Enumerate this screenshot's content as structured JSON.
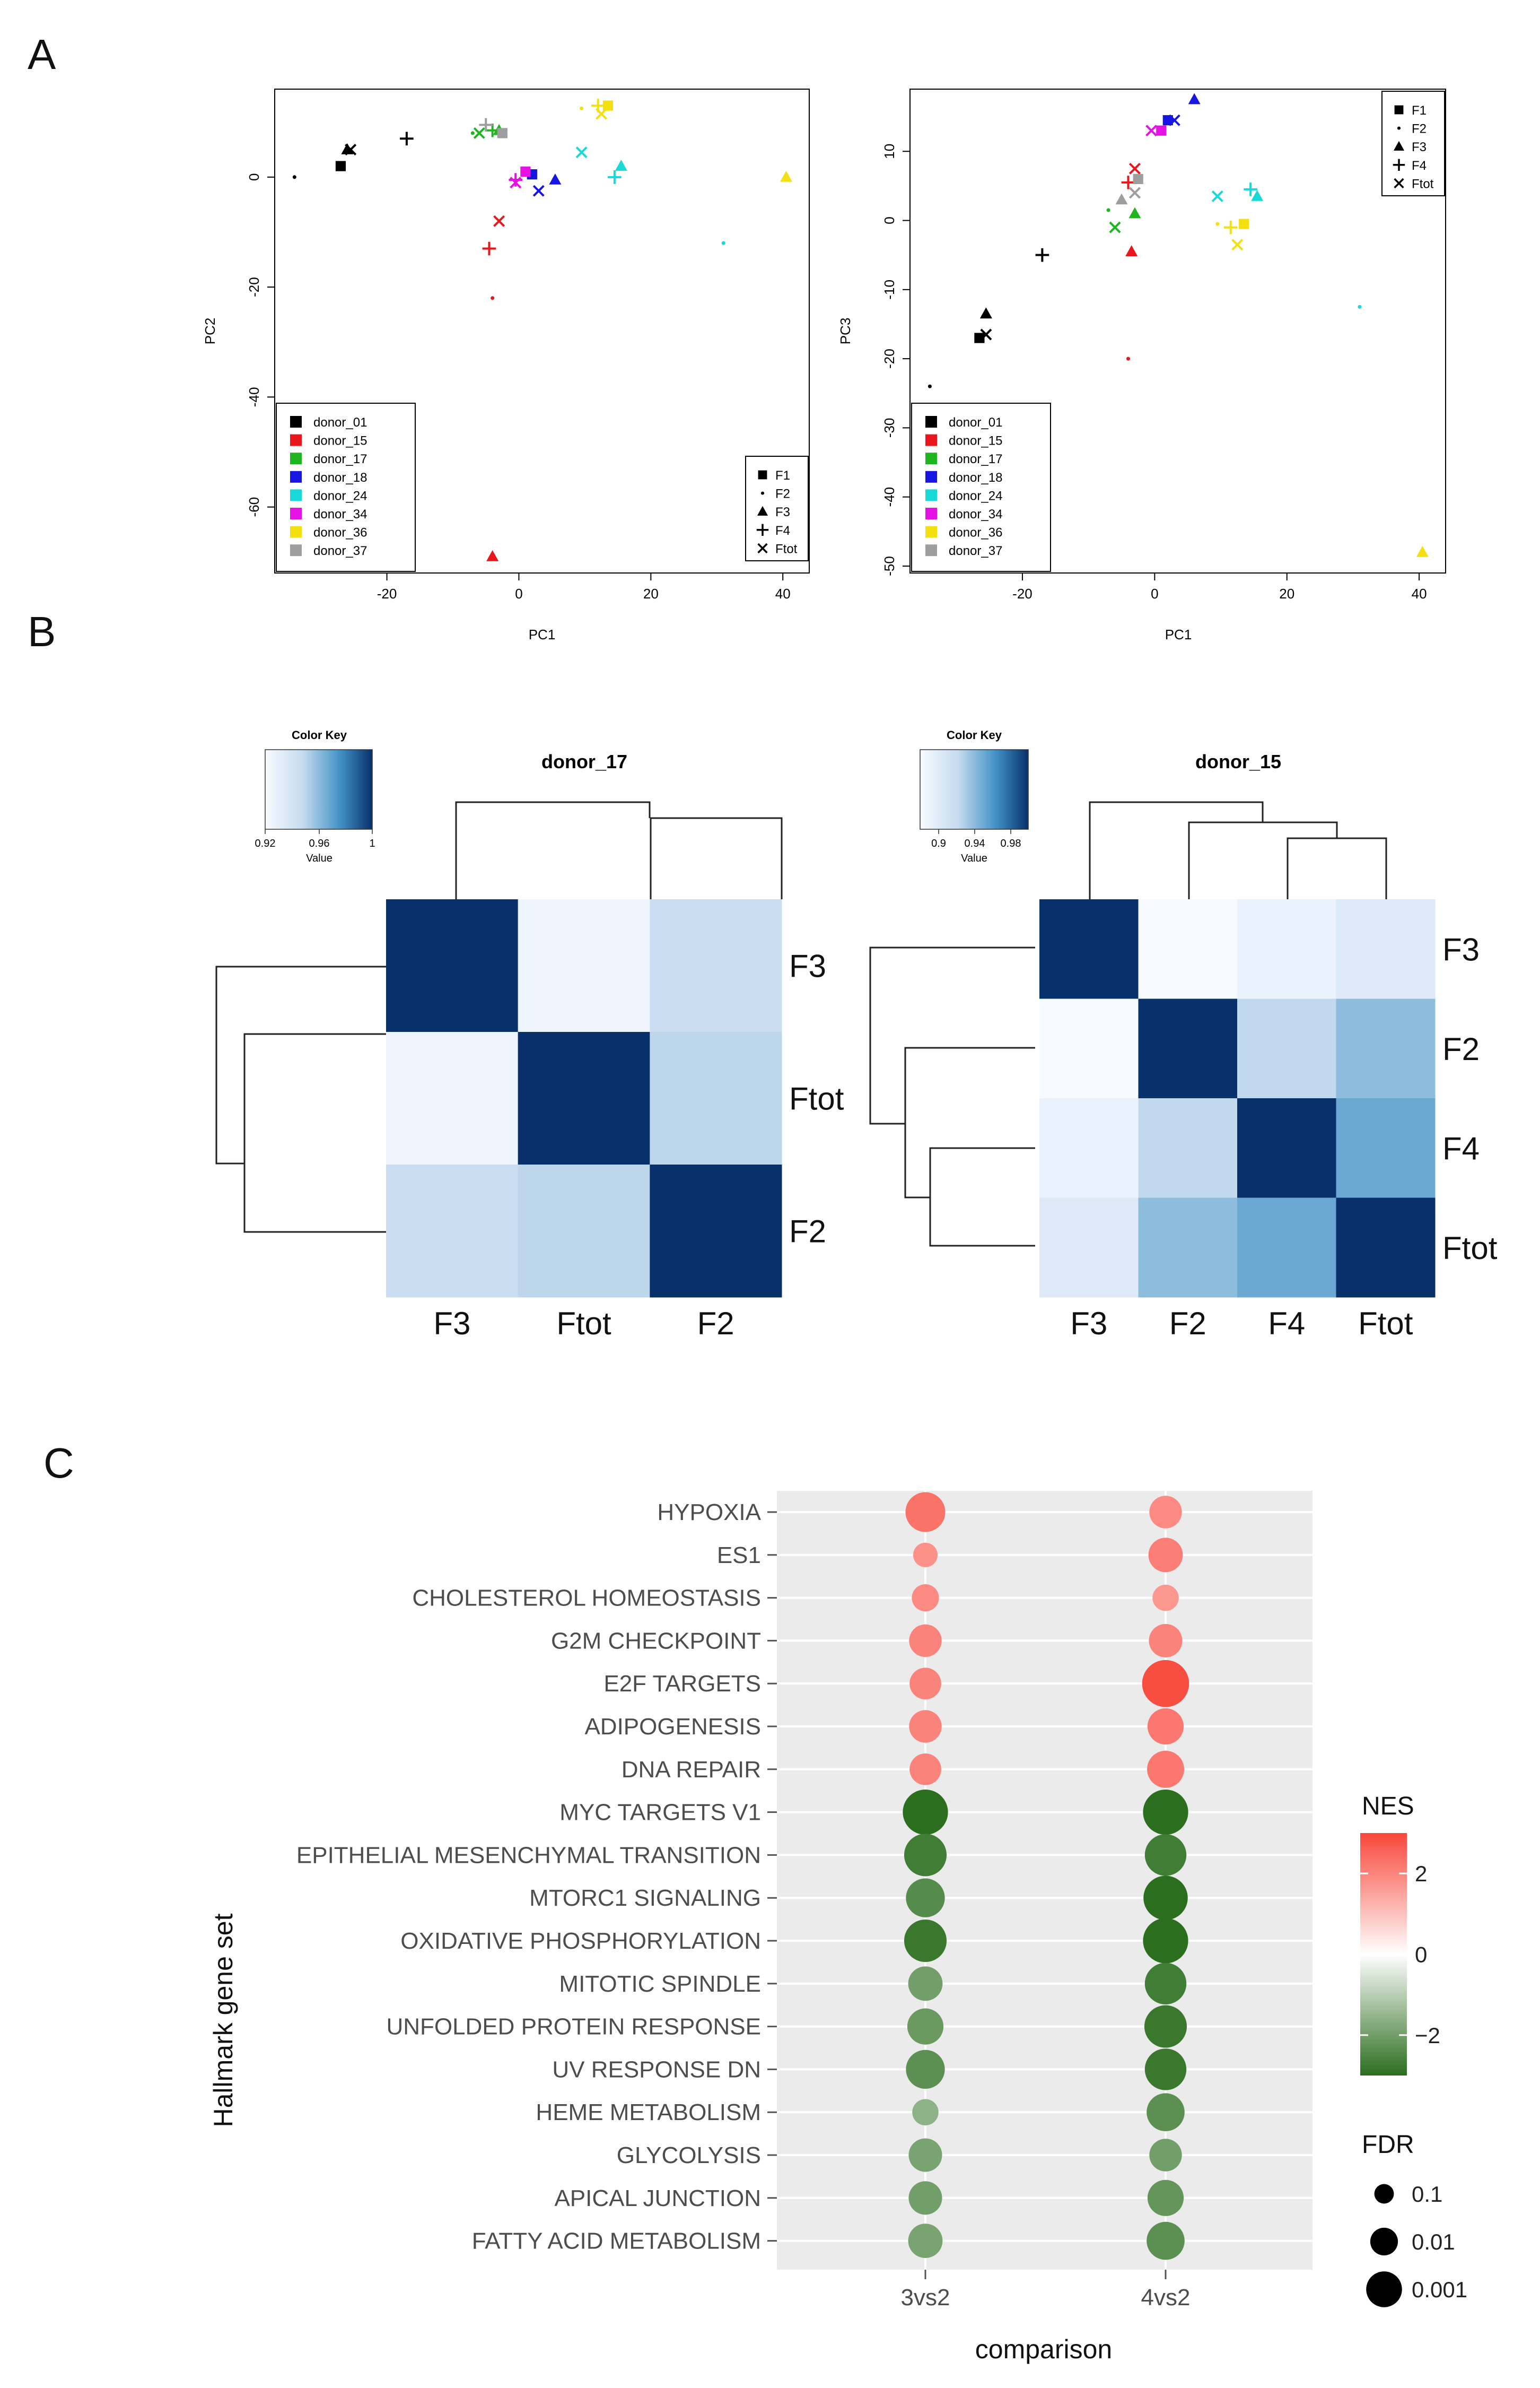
{
  "panels": {
    "A": "A",
    "B": "B",
    "C": "C"
  },
  "colors": {
    "donor_01": "#000000",
    "donor_15": "#e8171b",
    "donor_17": "#1fb51f",
    "donor_18": "#1616e0",
    "donor_24": "#18d8d8",
    "donor_34": "#e413e4",
    "donor_36": "#f2e010",
    "donor_37": "#9e9e9e",
    "heat_low": "#f7fbff",
    "heat_high": "#08306b",
    "nes_pos": "#f8473a",
    "nes_neg": "#2b6e1e",
    "panel_bg": "#ebebeb"
  },
  "pca_legend": {
    "donors": [
      "donor_01",
      "donor_15",
      "donor_17",
      "donor_18",
      "donor_24",
      "donor_34",
      "donor_36",
      "donor_37"
    ],
    "fractions": [
      "F1",
      "F2",
      "F3",
      "F4",
      "Ftot"
    ],
    "fraction_symbols": [
      "square",
      "dot",
      "triangle",
      "plus",
      "cross"
    ]
  },
  "heatmap_color_keys": [
    {
      "title": "Color Key",
      "sublabel": "Value",
      "ticks": [
        "0.92",
        "0.96",
        "1"
      ]
    },
    {
      "title": "Color Key",
      "sublabel": "Value",
      "ticks": [
        "0.9",
        "0.94",
        "0.98"
      ]
    }
  ],
  "chart_data": [
    {
      "type": "scatter",
      "title": "",
      "xlabel": "PC1",
      "ylabel": "PC2",
      "xlim": [
        -37,
        44
      ],
      "ylim": [
        -72,
        16
      ],
      "xticks": [
        "-20",
        "0",
        "20",
        "40"
      ],
      "yticks": [
        "-60",
        "-40",
        "-20",
        "0"
      ],
      "points": [
        {
          "donor": "donor_01",
          "frac": "F1",
          "x": -27,
          "y": 2
        },
        {
          "donor": "donor_01",
          "frac": "F2",
          "x": -34,
          "y": 0
        },
        {
          "donor": "donor_01",
          "frac": "F3",
          "x": -26,
          "y": 5
        },
        {
          "donor": "donor_01",
          "frac": "F4",
          "x": -17,
          "y": 7
        },
        {
          "donor": "donor_01",
          "frac": "Ftot",
          "x": -25.5,
          "y": 5
        },
        {
          "donor": "donor_15",
          "frac": "F2",
          "x": -4,
          "y": -22
        },
        {
          "donor": "donor_15",
          "frac": "F3",
          "x": -4,
          "y": -69
        },
        {
          "donor": "donor_15",
          "frac": "F4",
          "x": -4.5,
          "y": -13
        },
        {
          "donor": "donor_15",
          "frac": "Ftot",
          "x": -3,
          "y": -8
        },
        {
          "donor": "donor_17",
          "frac": "F2",
          "x": -7,
          "y": 8
        },
        {
          "donor": "donor_17",
          "frac": "F3",
          "x": -3,
          "y": 8.5
        },
        {
          "donor": "donor_17",
          "frac": "F4",
          "x": -4,
          "y": 8.5
        },
        {
          "donor": "donor_17",
          "frac": "Ftot",
          "x": -6,
          "y": 8
        },
        {
          "donor": "donor_18",
          "frac": "F1",
          "x": 2,
          "y": 0.5
        },
        {
          "donor": "donor_18",
          "frac": "F3",
          "x": 5.5,
          "y": -0.5
        },
        {
          "donor": "donor_18",
          "frac": "Ftot",
          "x": 3,
          "y": -2.5
        },
        {
          "donor": "donor_24",
          "frac": "F2",
          "x": 31,
          "y": -12
        },
        {
          "donor": "donor_24",
          "frac": "F3",
          "x": 15.5,
          "y": 2
        },
        {
          "donor": "donor_24",
          "frac": "F4",
          "x": 14.5,
          "y": 0
        },
        {
          "donor": "donor_24",
          "frac": "Ftot",
          "x": 9.5,
          "y": 4.5
        },
        {
          "donor": "donor_34",
          "frac": "F1",
          "x": 1,
          "y": 1
        },
        {
          "donor": "donor_34",
          "frac": "F4",
          "x": -0.5,
          "y": -0.5
        },
        {
          "donor": "donor_34",
          "frac": "Ftot",
          "x": -0.5,
          "y": -1
        },
        {
          "donor": "donor_36",
          "frac": "F1",
          "x": 13.5,
          "y": 13
        },
        {
          "donor": "donor_36",
          "frac": "F2",
          "x": 9.5,
          "y": 12.5
        },
        {
          "donor": "donor_36",
          "frac": "F3",
          "x": 40.5,
          "y": 0
        },
        {
          "donor": "donor_36",
          "frac": "F4",
          "x": 12,
          "y": 13
        },
        {
          "donor": "donor_36",
          "frac": "Ftot",
          "x": 12.5,
          "y": 11.5
        },
        {
          "donor": "donor_37",
          "frac": "F1",
          "x": -2.5,
          "y": 8
        },
        {
          "donor": "donor_37",
          "frac": "F4",
          "x": -5,
          "y": 9.5
        }
      ]
    },
    {
      "type": "scatter",
      "title": "",
      "xlabel": "PC1",
      "ylabel": "PC3",
      "xlim": [
        -37,
        44
      ],
      "ylim": [
        -51,
        19
      ],
      "xticks": [
        "-20",
        "0",
        "20",
        "40"
      ],
      "yticks": [
        "-50",
        "-40",
        "-30",
        "-20",
        "-10",
        "0",
        "10"
      ],
      "points": [
        {
          "donor": "donor_01",
          "frac": "F1",
          "x": -26.5,
          "y": -17
        },
        {
          "donor": "donor_01",
          "frac": "F2",
          "x": -34,
          "y": -24
        },
        {
          "donor": "donor_01",
          "frac": "F3",
          "x": -25.5,
          "y": -13.5
        },
        {
          "donor": "donor_01",
          "frac": "F4",
          "x": -17,
          "y": -5
        },
        {
          "donor": "donor_01",
          "frac": "Ftot",
          "x": -25.5,
          "y": -16.5
        },
        {
          "donor": "donor_15",
          "frac": "F2",
          "x": -4,
          "y": -20
        },
        {
          "donor": "donor_15",
          "frac": "F3",
          "x": -3.5,
          "y": -4.5
        },
        {
          "donor": "donor_15",
          "frac": "F4",
          "x": -4,
          "y": 5.5
        },
        {
          "donor": "donor_15",
          "frac": "Ftot",
          "x": -3,
          "y": 7.5
        },
        {
          "donor": "donor_17",
          "frac": "F2",
          "x": -7,
          "y": 1.5
        },
        {
          "donor": "donor_17",
          "frac": "F3",
          "x": -3,
          "y": 1
        },
        {
          "donor": "donor_17",
          "frac": "Ftot",
          "x": -6,
          "y": -1
        },
        {
          "donor": "donor_18",
          "frac": "F1",
          "x": 2,
          "y": 14.5
        },
        {
          "donor": "donor_18",
          "frac": "F3",
          "x": 6,
          "y": 17.5
        },
        {
          "donor": "donor_18",
          "frac": "Ftot",
          "x": 3,
          "y": 14.5
        },
        {
          "donor": "donor_24",
          "frac": "F2",
          "x": 31,
          "y": -12.5
        },
        {
          "donor": "donor_24",
          "frac": "F3",
          "x": 15.5,
          "y": 3.5
        },
        {
          "donor": "donor_24",
          "frac": "F4",
          "x": 14.5,
          "y": 4.5
        },
        {
          "donor": "donor_24",
          "frac": "Ftot",
          "x": 9.5,
          "y": 3.5
        },
        {
          "donor": "donor_34",
          "frac": "F1",
          "x": 1,
          "y": 13
        },
        {
          "donor": "donor_34",
          "frac": "Ftot",
          "x": -0.5,
          "y": 13
        },
        {
          "donor": "donor_36",
          "frac": "F1",
          "x": 13.5,
          "y": -0.5
        },
        {
          "donor": "donor_36",
          "frac": "F2",
          "x": 9.5,
          "y": -0.5
        },
        {
          "donor": "donor_36",
          "frac": "F3",
          "x": 40.5,
          "y": -48
        },
        {
          "donor": "donor_36",
          "frac": "F4",
          "x": 11.5,
          "y": -1
        },
        {
          "donor": "donor_36",
          "frac": "Ftot",
          "x": 12.5,
          "y": -3.5
        },
        {
          "donor": "donor_37",
          "frac": "F1",
          "x": -2.5,
          "y": 6
        },
        {
          "donor": "donor_37",
          "frac": "F3",
          "x": -5,
          "y": 3
        },
        {
          "donor": "donor_37",
          "frac": "Ftot",
          "x": -3,
          "y": 4
        }
      ]
    },
    {
      "type": "heatmap",
      "title": "donor_17",
      "row_labels": [
        "F3",
        "Ftot",
        "F2"
      ],
      "col_labels": [
        "F3",
        "Ftot",
        "F2"
      ],
      "range": [
        0.92,
        1.0
      ],
      "values": [
        [
          1.0,
          0.925,
          0.945
        ],
        [
          0.925,
          1.0,
          0.95
        ],
        [
          0.945,
          0.95,
          1.0
        ]
      ]
    },
    {
      "type": "heatmap",
      "title": "donor_15",
      "row_labels": [
        "F3",
        "F2",
        "F4",
        "Ftot"
      ],
      "col_labels": [
        "F3",
        "F2",
        "F4",
        "Ftot"
      ],
      "range": [
        0.89,
        1.0
      ],
      "values": [
        [
          1.0,
          0.89,
          0.9,
          0.91
        ],
        [
          0.89,
          1.0,
          0.93,
          0.945
        ],
        [
          0.9,
          0.93,
          1.0,
          0.955
        ],
        [
          0.91,
          0.945,
          0.955,
          1.0
        ]
      ]
    },
    {
      "type": "scatter",
      "title": "",
      "xlabel": "comparison",
      "ylabel": "Hallmark gene set",
      "categories": [
        "3vs2",
        "4vs2"
      ],
      "gene_sets": [
        "HYPOXIA",
        "ES1",
        "CHOLESTEROL HOMEOSTASIS",
        "G2M CHECKPOINT",
        "E2F TARGETS",
        "ADIPOGENESIS",
        "DNA REPAIR",
        "MYC TARGETS V1",
        "EPITHELIAL MESENCHYMAL TRANSITION",
        "MTORC1 SIGNALING",
        "OXIDATIVE PHOSPHORYLATION",
        "MITOTIC SPINDLE",
        "UNFOLDED PROTEIN RESPONSE",
        "UV RESPONSE DN",
        "HEME METABOLISM",
        "GLYCOLYSIS",
        "APICAL JUNCTION",
        "FATTY ACID METABOLISM"
      ],
      "nes_legend": {
        "title": "NES",
        "ticks": [
          2,
          0,
          -2
        ],
        "range": [
          -3,
          3
        ]
      },
      "fdr_legend": {
        "title": "FDR",
        "ticks": [
          "0.1",
          "0.01",
          "0.001"
        ]
      },
      "series": [
        {
          "name": "3vs2",
          "nes": [
            2.3,
            1.8,
            1.9,
            2.0,
            2.0,
            2.0,
            2.0,
            -3.0,
            -2.7,
            -2.4,
            -2.8,
            -2.0,
            -2.1,
            -2.3,
            -1.6,
            -1.9,
            -2.0,
            -1.9
          ],
          "neglog10_fdr": [
            3.0,
            1.3,
            1.6,
            2.2,
            2.1,
            2.2,
            2.1,
            3.6,
            3.3,
            2.9,
            3.3,
            2.4,
            2.6,
            2.9,
            1.5,
            2.3,
            2.3,
            2.4
          ]
        },
        {
          "name": "4vs2",
          "nes": [
            1.9,
            2.1,
            1.7,
            2.0,
            2.9,
            2.2,
            2.2,
            -3.1,
            -2.7,
            -3.0,
            -3.1,
            -2.7,
            -2.8,
            -2.8,
            -2.3,
            -2.0,
            -2.2,
            -2.3
          ],
          "neglog10_fdr": [
            2.2,
            2.4,
            1.5,
            2.3,
            3.8,
            2.6,
            2.7,
            3.6,
            3.2,
            3.5,
            3.6,
            3.2,
            3.3,
            3.2,
            2.8,
            2.2,
            2.6,
            2.8
          ]
        }
      ]
    }
  ]
}
